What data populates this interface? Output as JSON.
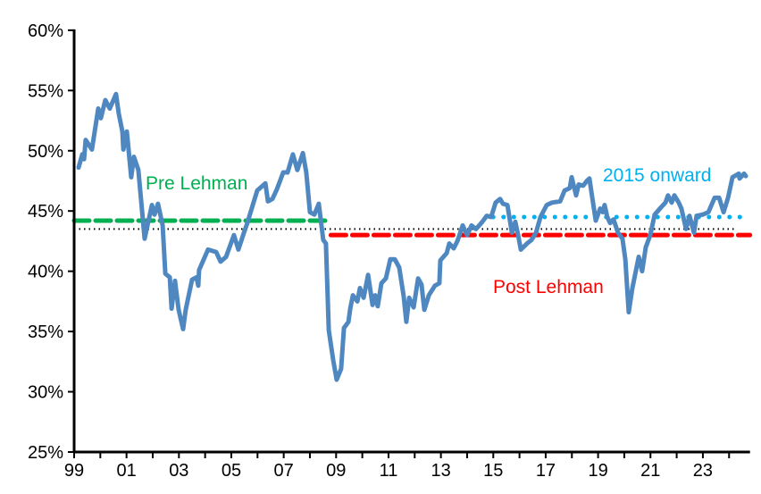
{
  "chart_data": {
    "type": "line",
    "title": "",
    "xlabel": "",
    "ylabel": "",
    "xlim": [
      1999,
      2024.8
    ],
    "ylim": [
      25,
      60
    ],
    "y_ticks": [
      "25%",
      "30%",
      "35%",
      "40%",
      "45%",
      "50%",
      "55%",
      "60%"
    ],
    "y_tick_values": [
      25,
      30,
      35,
      40,
      45,
      50,
      55,
      60
    ],
    "x_ticks": [
      "99",
      "01",
      "03",
      "05",
      "07",
      "09",
      "11",
      "13",
      "15",
      "17",
      "19",
      "21",
      "23"
    ],
    "x_tick_values": [
      1999,
      2001,
      2003,
      2005,
      2007,
      2009,
      2011,
      2013,
      2015,
      2017,
      2019,
      2021,
      2023
    ],
    "grid": false,
    "legend": "none",
    "colors": {
      "series": "#4F88C0",
      "pre": "#00B050",
      "post": "#FF0000",
      "onward": "#00B0F0",
      "overall": "#000000"
    },
    "series": [
      {
        "x": [
          1999.17,
          1999.31,
          1999.38,
          1999.44,
          1999.68,
          1999.92,
          2000.02,
          2000.19,
          2000.36,
          2000.6,
          2000.7,
          2000.84,
          2000.88,
          2001.01,
          2001.18,
          2001.28,
          2001.45,
          2001.69,
          2001.97,
          2002.07,
          2002.2,
          2002.38,
          2002.48,
          2002.65,
          2002.72,
          2002.85,
          2002.99,
          2003.16,
          2003.26,
          2003.5,
          2003.67,
          2003.74,
          2003.77,
          2004.11,
          2004.42,
          2004.59,
          2004.8,
          2005.1,
          2005.27,
          2005.48,
          2005.61,
          2005.82,
          2005.99,
          2006.3,
          2006.4,
          2006.57,
          2006.74,
          2006.98,
          2007.15,
          2007.35,
          2007.52,
          2007.73,
          2007.86,
          2008.0,
          2008.17,
          2008.34,
          2008.51,
          2008.61,
          2008.72,
          2008.89,
          2009.02,
          2009.19,
          2009.3,
          2009.47,
          2009.54,
          2009.64,
          2009.81,
          2009.91,
          2010.05,
          2010.22,
          2010.39,
          2010.49,
          2010.59,
          2010.73,
          2010.9,
          2011.07,
          2011.24,
          2011.41,
          2011.58,
          2011.68,
          2011.79,
          2011.96,
          2012.13,
          2012.26,
          2012.37,
          2012.54,
          2012.77,
          2012.94,
          2012.98,
          2013.22,
          2013.32,
          2013.49,
          2013.63,
          2013.83,
          2014.0,
          2014.17,
          2014.34,
          2014.58,
          2014.75,
          2014.92,
          2015.09,
          2015.26,
          2015.37,
          2015.54,
          2015.71,
          2015.84,
          2015.95,
          2016.05,
          2016.29,
          2016.46,
          2016.63,
          2016.8,
          2017.04,
          2017.24,
          2017.55,
          2017.72,
          2017.92,
          2017.99,
          2018.16,
          2018.26,
          2018.43,
          2018.57,
          2018.67,
          2018.78,
          2018.91,
          2019.08,
          2019.18,
          2019.25,
          2019.35,
          2019.46,
          2019.59,
          2019.76,
          2019.93,
          2020.04,
          2020.17,
          2020.31,
          2020.55,
          2020.68,
          2020.82,
          2020.99,
          2021.16,
          2021.4,
          2021.57,
          2021.67,
          2021.81,
          2021.91,
          2022.08,
          2022.18,
          2022.36,
          2022.49,
          2022.66,
          2022.76,
          2023.0,
          2023.21,
          2023.45,
          2023.62,
          2023.79,
          2023.96,
          2024.13,
          2024.37,
          2024.4,
          2024.57,
          2024.64
        ],
        "y": [
          48.6,
          49.7,
          49.3,
          50.9,
          50.1,
          53.5,
          52.7,
          54.2,
          53.5,
          54.7,
          53.1,
          51.6,
          50.1,
          51.6,
          47.8,
          49.5,
          48.4,
          42.7,
          45.5,
          44.7,
          45.6,
          43.8,
          39.8,
          39.5,
          36.9,
          39.2,
          36.8,
          35.2,
          36.8,
          39.3,
          39.5,
          38.8,
          40.1,
          41.8,
          41.6,
          40.8,
          41.2,
          43.0,
          41.8,
          43.2,
          44.0,
          45.5,
          46.7,
          47.3,
          45.8,
          46.0,
          46.8,
          48.2,
          48.2,
          49.7,
          48.4,
          49.8,
          48.2,
          44.9,
          44.7,
          45.6,
          42.6,
          42.3,
          35.1,
          32.6,
          31.0,
          31.9,
          35.3,
          35.8,
          36.9,
          38.0,
          37.5,
          38.6,
          37.8,
          39.7,
          37.2,
          38.0,
          37.1,
          39.0,
          39.4,
          41.0,
          41.0,
          40.3,
          37.9,
          35.8,
          37.8,
          37.0,
          39.4,
          38.9,
          36.8,
          38.0,
          38.8,
          39.0,
          40.9,
          41.5,
          42.3,
          41.9,
          42.5,
          43.8,
          43.0,
          43.8,
          43.5,
          44.1,
          44.6,
          44.5,
          45.7,
          46.0,
          45.6,
          45.5,
          43.2,
          44.1,
          43.0,
          41.8,
          42.3,
          42.6,
          43.2,
          44.5,
          45.5,
          45.7,
          45.8,
          46.7,
          46.9,
          47.8,
          46.3,
          47.2,
          47.1,
          47.5,
          47.7,
          46.1,
          44.2,
          45.2,
          44.9,
          45.5,
          44.5,
          44.0,
          44.3,
          43.2,
          42.7,
          41.0,
          36.6,
          38.6,
          41.2,
          40.0,
          42.0,
          43.0,
          44.7,
          45.3,
          45.7,
          46.3,
          45.7,
          46.3,
          45.7,
          45.2,
          43.5,
          44.6,
          43.2,
          44.6,
          44.7,
          44.9,
          46.1,
          46.1,
          44.9,
          46.1,
          47.8,
          48.1,
          47.7,
          48.1,
          47.9
        ]
      }
    ],
    "reference_lines": [
      {
        "label": "Pre Lehman",
        "value": 44.2,
        "from": 1999.0,
        "to": 2008.6,
        "style": "dashed",
        "color": "#00B050"
      },
      {
        "label": "Post Lehman",
        "value": 43.0,
        "from": 2008.8,
        "to": 2024.8,
        "style": "dashed",
        "color": "#FF0000"
      },
      {
        "label": "2015 onward",
        "value": 44.5,
        "from": 2015.0,
        "to": 2024.8,
        "style": "dotted",
        "color": "#00B0F0"
      },
      {
        "label": "",
        "value": 43.5,
        "from": 1999.0,
        "to": 2024.3,
        "style": "dotted",
        "color": "#000000"
      }
    ],
    "annotations": {
      "pre": "Pre Lehman",
      "post": "Post Lehman",
      "onward": "2015 onward"
    }
  }
}
